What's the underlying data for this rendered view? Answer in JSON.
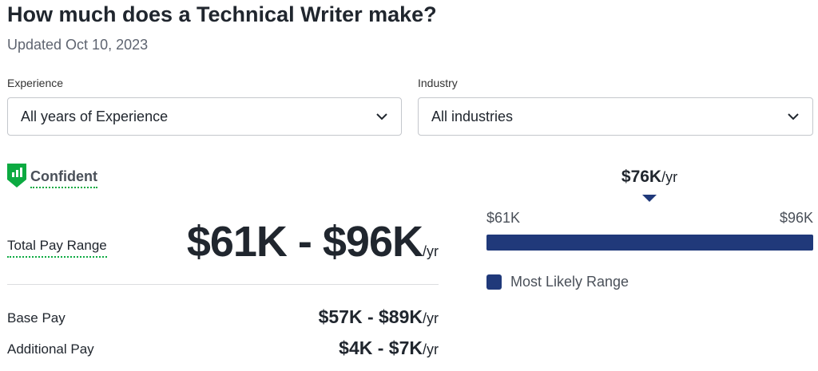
{
  "header": {
    "title": "How much does a Technical Writer make?",
    "updated": "Updated Oct 10, 2023"
  },
  "filters": [
    {
      "label": "Experience",
      "value": "All years of Experience"
    },
    {
      "label": "Industry",
      "value": "All industries"
    }
  ],
  "confidence": "Confident",
  "total_pay": {
    "label": "Total Pay Range",
    "range": "$61K - $96K",
    "unit": "/yr"
  },
  "breakdown": [
    {
      "label": "Base Pay",
      "range": "$57K - $89K",
      "unit": "/yr"
    },
    {
      "label": "Additional Pay",
      "range": "$4K - $7K",
      "unit": "/yr"
    }
  ],
  "range_bar": {
    "median": "$76K",
    "median_unit": "/yr",
    "low": "$61K",
    "high": "$96K",
    "legend": "Most Likely Range"
  }
}
